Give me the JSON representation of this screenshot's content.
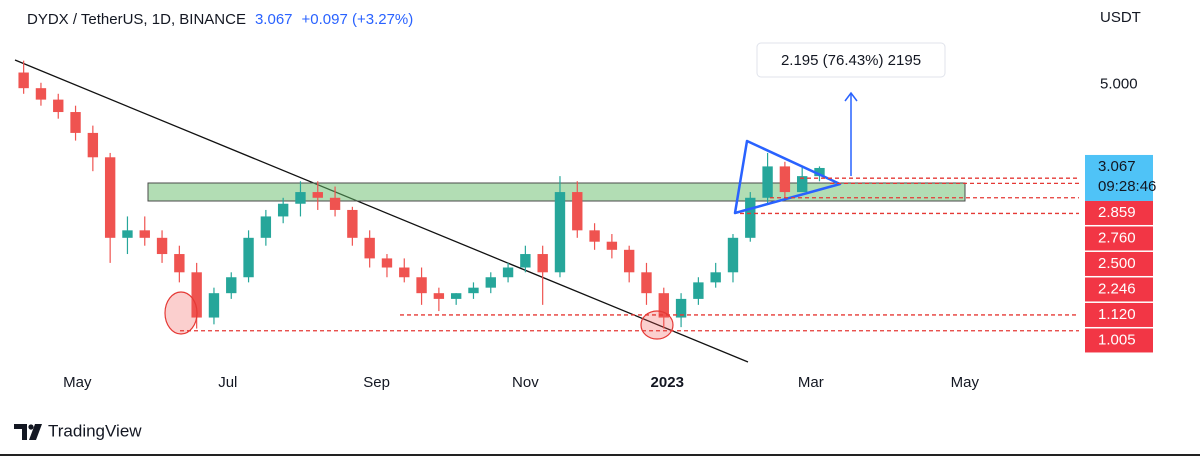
{
  "chart_data": {
    "type": "candlestick",
    "title": "DYDX / TetherUS, 1D, BINANCE",
    "last_price": {
      "value": 3.067,
      "label": "3.067"
    },
    "change_label": "+0.097 (+3.27%)",
    "unit": "USDT",
    "log_scale": true,
    "ylim": [
      0.8,
      9.7
    ],
    "yticks": [
      {
        "value": 5,
        "label": "5.000"
      }
    ],
    "xlim": [
      0,
      61.5
    ],
    "xticks": [
      {
        "value": 3.6,
        "label": "May"
      },
      {
        "value": 12.3,
        "label": "Jul"
      },
      {
        "value": 20.9,
        "label": "Sep"
      },
      {
        "value": 29.5,
        "label": "Nov"
      },
      {
        "value": 37.7,
        "label": "2023"
      },
      {
        "value": 46.0,
        "label": "Mar"
      },
      {
        "value": 54.9,
        "label": "May"
      }
    ],
    "up_color": "#26a69a",
    "down_color": "#ef5350",
    "open": [
      5.9,
      5.3,
      4.9,
      4.5,
      3.9,
      3.3,
      1.9,
      2.0,
      1.9,
      1.7,
      1.5,
      1.1,
      1.3,
      1.45,
      1.9,
      2.2,
      2.4,
      2.6,
      2.5,
      2.3,
      1.9,
      1.65,
      1.55,
      1.45,
      1.3,
      1.25,
      1.3,
      1.35,
      1.45,
      1.55,
      1.7,
      1.5,
      2.6,
      2.0,
      1.85,
      1.75,
      1.5,
      1.3,
      1.1,
      1.25,
      1.4,
      1.5,
      1.9,
      2.5,
      3.1,
      2.6,
      2.9
    ],
    "high": [
      6.4,
      5.5,
      5.1,
      4.7,
      4.1,
      3.4,
      2.2,
      2.2,
      2.0,
      1.8,
      1.6,
      1.35,
      1.5,
      2.0,
      2.3,
      2.5,
      2.8,
      2.8,
      2.7,
      2.35,
      2.0,
      1.7,
      1.65,
      1.55,
      1.35,
      1.3,
      1.4,
      1.5,
      1.6,
      1.8,
      1.8,
      2.9,
      2.8,
      2.1,
      1.95,
      1.8,
      1.6,
      1.35,
      1.3,
      1.45,
      1.6,
      1.95,
      2.6,
      3.4,
      3.2,
      3.1,
      3.1
    ],
    "low": [
      5.1,
      4.7,
      4.3,
      3.7,
      3.0,
      1.6,
      1.7,
      1.8,
      1.6,
      1.4,
      1.02,
      1.05,
      1.25,
      1.4,
      1.8,
      2.1,
      2.2,
      2.3,
      2.2,
      1.8,
      1.55,
      1.45,
      1.4,
      1.2,
      1.15,
      1.2,
      1.25,
      1.3,
      1.4,
      1.5,
      1.2,
      1.45,
      1.9,
      1.75,
      1.65,
      1.4,
      1.2,
      1.02,
      1.03,
      1.2,
      1.35,
      1.4,
      1.85,
      2.4,
      2.5,
      2.6,
      2.8
    ],
    "close": [
      5.3,
      4.9,
      4.5,
      3.9,
      3.3,
      1.9,
      2.0,
      1.9,
      1.7,
      1.5,
      1.1,
      1.3,
      1.45,
      1.9,
      2.2,
      2.4,
      2.6,
      2.5,
      2.3,
      1.9,
      1.65,
      1.55,
      1.45,
      1.3,
      1.25,
      1.3,
      1.35,
      1.45,
      1.55,
      1.7,
      1.5,
      2.6,
      2.0,
      1.85,
      1.75,
      1.5,
      1.3,
      1.1,
      1.25,
      1.4,
      1.5,
      1.9,
      2.5,
      3.1,
      2.6,
      2.9,
      3.067
    ],
    "countdown": "09:28:46",
    "levels": [
      {
        "value": 2.859,
        "label": "2.859"
      },
      {
        "value": 2.76,
        "label": "2.760"
      },
      {
        "value": 2.5,
        "label": "2.500"
      },
      {
        "value": 2.246,
        "label": "2.246"
      },
      {
        "value": 1.12,
        "label": "1.120"
      },
      {
        "value": 1.005,
        "label": "1.005"
      }
    ],
    "annotation": "2.195 (76.43%) 2195",
    "brand": "TradingView"
  }
}
